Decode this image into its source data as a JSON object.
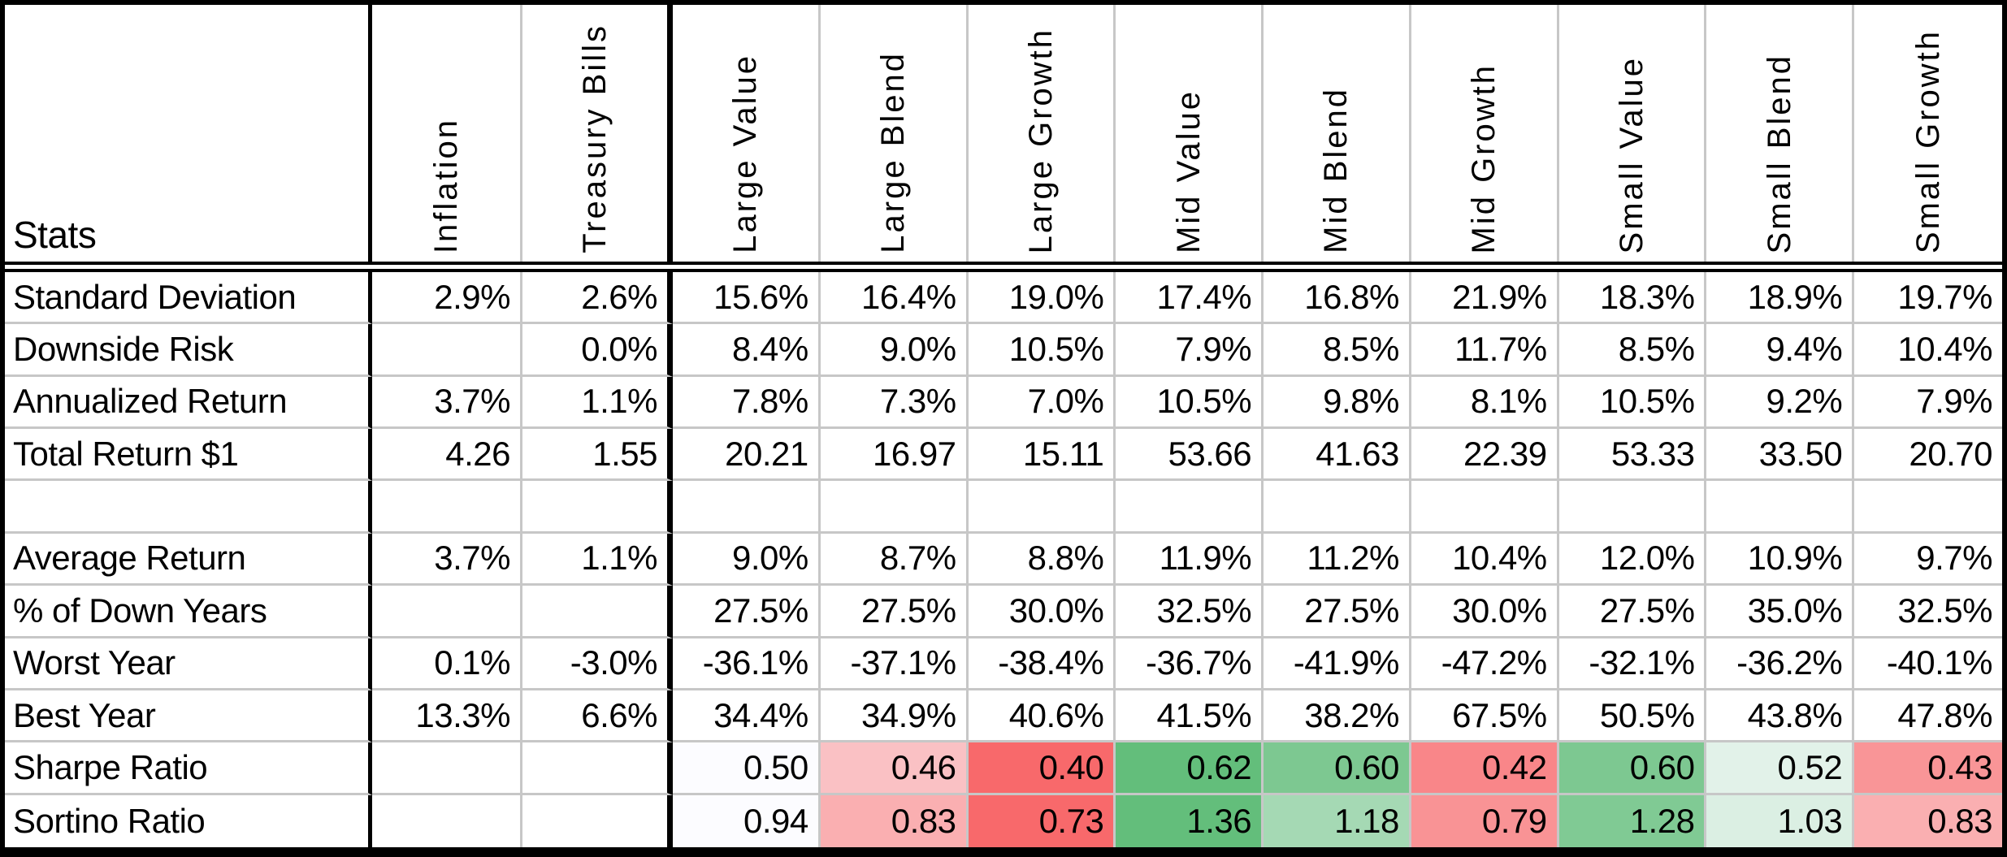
{
  "chart_data": {
    "type": "table",
    "corner_label": "Stats",
    "columns": [
      "Inflation",
      "Treasury Bills",
      "Large Value",
      "Large Blend",
      "Large Growth",
      "Mid Value",
      "Mid Blend",
      "Mid Growth",
      "Small Value",
      "Small Blend",
      "Small Growth"
    ],
    "rows": [
      {
        "label": "Standard Deviation",
        "values": [
          "2.9%",
          "2.6%",
          "15.6%",
          "16.4%",
          "19.0%",
          "17.4%",
          "16.8%",
          "21.9%",
          "18.3%",
          "18.9%",
          "19.7%"
        ]
      },
      {
        "label": "Downside Risk",
        "values": [
          "",
          "0.0%",
          "8.4%",
          "9.0%",
          "10.5%",
          "7.9%",
          "8.5%",
          "11.7%",
          "8.5%",
          "9.4%",
          "10.4%"
        ]
      },
      {
        "label": "Annualized Return",
        "values": [
          "3.7%",
          "1.1%",
          "7.8%",
          "7.3%",
          "7.0%",
          "10.5%",
          "9.8%",
          "8.1%",
          "10.5%",
          "9.2%",
          "7.9%"
        ]
      },
      {
        "label": "Total Return $1",
        "values": [
          "4.26",
          "1.55",
          "20.21",
          "16.97",
          "15.11",
          "53.66",
          "41.63",
          "22.39",
          "53.33",
          "33.50",
          "20.70"
        ]
      },
      {
        "label": "",
        "values": [
          "",
          "",
          "",
          "",
          "",
          "",
          "",
          "",
          "",
          "",
          ""
        ]
      },
      {
        "label": "Average Return",
        "values": [
          "3.7%",
          "1.1%",
          "9.0%",
          "8.7%",
          "8.8%",
          "11.9%",
          "11.2%",
          "10.4%",
          "12.0%",
          "10.9%",
          "9.7%"
        ]
      },
      {
        "label": "% of Down Years",
        "values": [
          "",
          "",
          "27.5%",
          "27.5%",
          "30.0%",
          "32.5%",
          "27.5%",
          "30.0%",
          "27.5%",
          "35.0%",
          "32.5%"
        ]
      },
      {
        "label": "Worst Year",
        "values": [
          "0.1%",
          "-3.0%",
          "-36.1%",
          "-37.1%",
          "-38.4%",
          "-36.7%",
          "-41.9%",
          "-47.2%",
          "-32.1%",
          "-36.2%",
          "-40.1%"
        ]
      },
      {
        "label": "Best Year",
        "values": [
          "13.3%",
          "6.6%",
          "34.4%",
          "34.9%",
          "40.6%",
          "41.5%",
          "38.2%",
          "67.5%",
          "50.5%",
          "43.8%",
          "47.8%"
        ]
      },
      {
        "label": "Sharpe Ratio",
        "values": [
          "",
          "",
          "0.50",
          "0.46",
          "0.40",
          "0.62",
          "0.60",
          "0.42",
          "0.60",
          "0.52",
          "0.43"
        ],
        "colors": [
          "",
          "",
          "#FCFCFF",
          "#FAC1C4",
          "#F8696B",
          "#63BE7B",
          "#7DC891",
          "#F98689",
          "#7DC891",
          "#E2F2E9",
          "#F99597"
        ]
      },
      {
        "label": "Sortino Ratio",
        "values": [
          "",
          "",
          "0.94",
          "0.83",
          "0.73",
          "1.36",
          "1.18",
          "0.79",
          "1.28",
          "1.03",
          "0.83"
        ],
        "colors": [
          "",
          "",
          "#FCFCFF",
          "#FAAFB1",
          "#F8696B",
          "#63BE7B",
          "#A5D9B4",
          "#F99395",
          "#80CA94",
          "#DBEFE3",
          "#FAAFB1"
        ]
      }
    ],
    "color_scale": {
      "low": "#F8696B",
      "mid": "#FCFCFF",
      "high": "#63BE7B"
    },
    "layout": {
      "grid_line_color": "#C7C7C7",
      "border_color": "#000000",
      "header_rotation": "90deg-ccw"
    }
  }
}
